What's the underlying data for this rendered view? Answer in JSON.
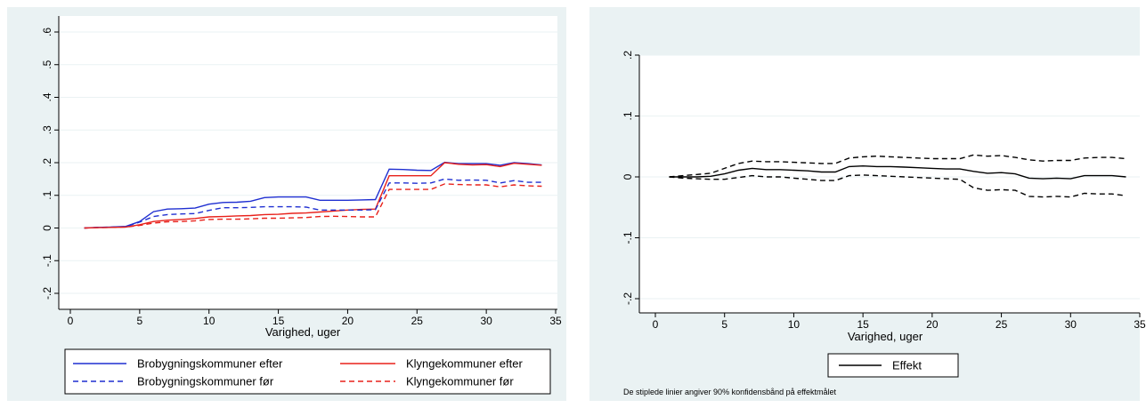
{
  "colors": {
    "background": "#eaf2f3",
    "plot": "#ffffff",
    "grid": "#eaf2f3",
    "blue": "#1f2fd1",
    "red": "#e8201a",
    "black": "#000000"
  },
  "chart_data": [
    {
      "type": "line",
      "xlabel": "Varighed, uger",
      "ylabel": "",
      "xlim": [
        0,
        35
      ],
      "ylim": [
        -0.2,
        0.6
      ],
      "x_ticks": [
        "0",
        "5",
        "10",
        "15",
        "20",
        "25",
        "30",
        "35"
      ],
      "y_ticks": [
        "-.2",
        "-.1",
        "0",
        ".1",
        ".2",
        ".3",
        ".4",
        ".5",
        ".6"
      ],
      "grid": true,
      "legend_position": "bottom",
      "x": [
        1,
        2,
        3,
        4,
        5,
        6,
        7,
        8,
        9,
        10,
        11,
        12,
        13,
        14,
        15,
        16,
        17,
        18,
        19,
        20,
        21,
        22,
        23,
        24,
        25,
        26,
        27,
        28,
        29,
        30,
        31,
        32,
        33,
        34
      ],
      "series": [
        {
          "name": "Brobygningskommuner  efter",
          "color": "#1f2fd1",
          "dash": "solid",
          "values": [
            0,
            0.002,
            0.003,
            0.005,
            0.02,
            0.05,
            0.058,
            0.059,
            0.061,
            0.073,
            0.078,
            0.079,
            0.082,
            0.093,
            0.095,
            0.095,
            0.095,
            0.085,
            0.085,
            0.085,
            0.086,
            0.087,
            0.18,
            0.179,
            0.177,
            0.176,
            0.201,
            0.197,
            0.197,
            0.197,
            0.192,
            0.2,
            0.197,
            0.193
          ]
        },
        {
          "name": "Klyngekommuner efter",
          "color": "#e8201a",
          "dash": "solid",
          "values": [
            0,
            0.001,
            0.002,
            0.003,
            0.01,
            0.02,
            0.024,
            0.026,
            0.029,
            0.034,
            0.035,
            0.037,
            0.038,
            0.041,
            0.042,
            0.045,
            0.046,
            0.049,
            0.052,
            0.055,
            0.057,
            0.058,
            0.16,
            0.16,
            0.16,
            0.16,
            0.2,
            0.195,
            0.193,
            0.194,
            0.188,
            0.198,
            0.195,
            0.192
          ]
        },
        {
          "name": "Brobygningskommuner  før",
          "color": "#1f2fd1",
          "dash": "dash",
          "values": [
            0,
            0.002,
            0.003,
            0.004,
            0.018,
            0.035,
            0.041,
            0.043,
            0.044,
            0.054,
            0.062,
            0.062,
            0.063,
            0.065,
            0.065,
            0.065,
            0.064,
            0.055,
            0.055,
            0.055,
            0.055,
            0.056,
            0.138,
            0.138,
            0.137,
            0.138,
            0.15,
            0.146,
            0.147,
            0.146,
            0.138,
            0.145,
            0.14,
            0.14
          ]
        },
        {
          "name": "Klyngekommuner  før",
          "color": "#e8201a",
          "dash": "dash",
          "values": [
            0,
            0.001,
            0.002,
            0.003,
            0.008,
            0.015,
            0.019,
            0.02,
            0.022,
            0.026,
            0.027,
            0.027,
            0.028,
            0.03,
            0.03,
            0.031,
            0.032,
            0.035,
            0.036,
            0.035,
            0.034,
            0.034,
            0.118,
            0.118,
            0.118,
            0.118,
            0.135,
            0.133,
            0.132,
            0.132,
            0.126,
            0.132,
            0.129,
            0.128
          ]
        }
      ]
    },
    {
      "type": "line",
      "xlabel": "Varighed, uger",
      "ylabel": "",
      "xlim": [
        0,
        35
      ],
      "ylim": [
        -0.2,
        0.2
      ],
      "x_ticks": [
        "0",
        "5",
        "10",
        "15",
        "20",
        "25",
        "30",
        "35"
      ],
      "y_ticks": [
        "-.2",
        "-.1",
        "0",
        ".1",
        ".2"
      ],
      "grid": true,
      "legend_position": "bottom",
      "note": "De stiplede linier angiver 90% konfidensbånd på effektmålet",
      "x": [
        1,
        2,
        3,
        4,
        5,
        6,
        7,
        8,
        9,
        10,
        11,
        12,
        13,
        14,
        15,
        16,
        17,
        18,
        19,
        20,
        21,
        22,
        23,
        24,
        25,
        26,
        27,
        28,
        29,
        30,
        31,
        32,
        33,
        34
      ],
      "series": [
        {
          "name": "Effekt",
          "color": "#000000",
          "dash": "solid",
          "values": [
            0,
            0,
            0,
            0.001,
            0.005,
            0.011,
            0.014,
            0.012,
            0.012,
            0.011,
            0.01,
            0.008,
            0.008,
            0.017,
            0.018,
            0.017,
            0.017,
            0.016,
            0.015,
            0.014,
            0.013,
            0.013,
            0.009,
            0.006,
            0.007,
            0.005,
            -0.002,
            -0.003,
            -0.002,
            -0.003,
            0.002,
            0.002,
            0.002,
            0
          ]
        },
        {
          "color": "#000000",
          "dash": "dash",
          "values": [
            0,
            0.002,
            0.004,
            0.006,
            0.014,
            0.022,
            0.026,
            0.025,
            0.025,
            0.024,
            0.023,
            0.022,
            0.022,
            0.031,
            0.033,
            0.034,
            0.033,
            0.032,
            0.031,
            0.03,
            0.03,
            0.03,
            0.036,
            0.034,
            0.035,
            0.032,
            0.028,
            0.026,
            0.027,
            0.027,
            0.031,
            0.032,
            0.032,
            0.03
          ]
        },
        {
          "color": "#000000",
          "dash": "dash",
          "values": [
            0,
            -0.002,
            -0.003,
            -0.004,
            -0.004,
            -0.001,
            0.002,
            0,
            0,
            -0.002,
            -0.004,
            -0.006,
            -0.006,
            0.002,
            0.003,
            0.002,
            0.001,
            0,
            -0.001,
            -0.002,
            -0.003,
            -0.004,
            -0.018,
            -0.022,
            -0.021,
            -0.022,
            -0.032,
            -0.033,
            -0.032,
            -0.033,
            -0.027,
            -0.028,
            -0.028,
            -0.031
          ]
        }
      ]
    }
  ]
}
